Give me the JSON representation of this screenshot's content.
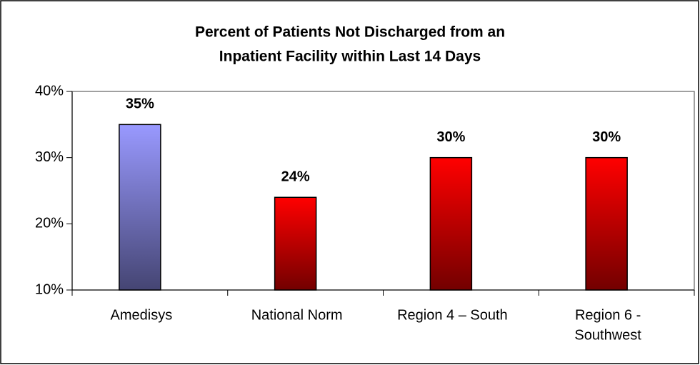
{
  "chart_data": {
    "type": "bar",
    "title": [
      "Percent of Patients Not Discharged from an",
      "Inpatient Facility within Last 14 Days"
    ],
    "categories": [
      [
        "Amedisys"
      ],
      [
        "National Norm"
      ],
      [
        "Region 4 – South"
      ],
      [
        "Region 6 -",
        "Southwest"
      ]
    ],
    "values": [
      35,
      24,
      30,
      30
    ],
    "value_labels": [
      "35%",
      "24%",
      "30%",
      "30%"
    ],
    "colors": [
      "#9999ff",
      "#ff0000",
      "#ff0000",
      "#ff0000"
    ],
    "ylim": [
      10,
      40
    ],
    "yticks": [
      {
        "value": 10,
        "label": "10%"
      },
      {
        "value": 20,
        "label": "20%"
      },
      {
        "value": 30,
        "label": "30%"
      },
      {
        "value": 40,
        "label": "40%"
      }
    ],
    "grid": false
  }
}
